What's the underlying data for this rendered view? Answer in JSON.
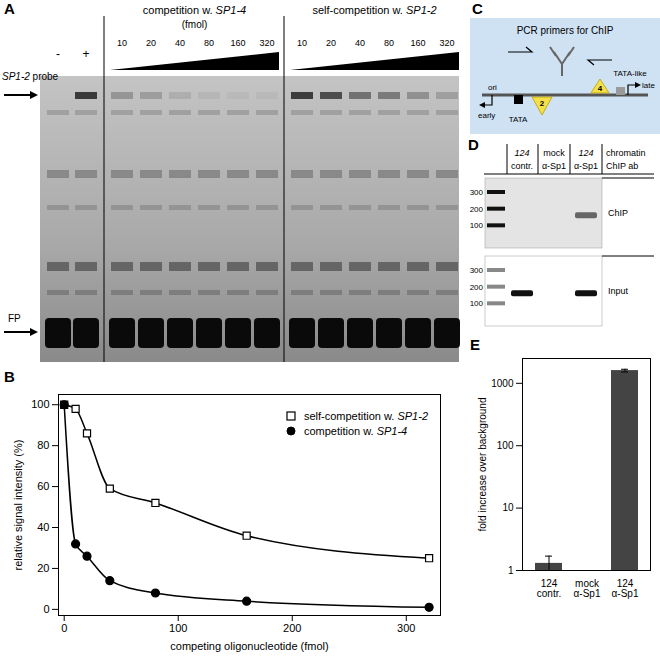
{
  "panels": {
    "A": {
      "letter": "A",
      "probe_label": "SP1-2 probe",
      "free_probe_label": "FP",
      "control_lanes": [
        "-",
        "+"
      ],
      "groups": [
        {
          "title": "competition w. SP1-4",
          "unit": "(fmol)",
          "lanes": [
            10,
            20,
            40,
            80,
            160,
            320
          ]
        },
        {
          "title": "self-competition w. SP1-2",
          "lanes": [
            10,
            20,
            40,
            80,
            160,
            320
          ]
        }
      ]
    },
    "B": {
      "letter": "B"
    },
    "C": {
      "letter": "C",
      "title": "PCR primers for ChIP",
      "labels": {
        "ori": "ori",
        "early": "early",
        "late": "late",
        "tata": "TATA",
        "tata_like": "TATA-like",
        "site_2": "2",
        "site_4": "4"
      }
    },
    "D": {
      "letter": "D",
      "header": [
        "chromatin",
        "ChIP ab"
      ],
      "columns": [
        {
          "chromatin": "124",
          "antibody": "contr."
        },
        {
          "chromatin": "mock",
          "antibody": "α-Sp1"
        },
        {
          "chromatin": "124",
          "antibody": "α-Sp1"
        }
      ],
      "ladder": [
        300,
        200,
        100
      ],
      "rows": [
        {
          "label": "ChIP",
          "bands": [
            false,
            false,
            true
          ]
        },
        {
          "label": "Input",
          "bands": [
            true,
            false,
            true
          ]
        }
      ]
    },
    "E": {
      "letter": "E"
    }
  },
  "chart_data": [
    {
      "type": "scatter",
      "xlabel": "competing oligonucleotide (fmol)",
      "ylabel": "relative signal intensity (%)",
      "x": [
        0,
        10,
        20,
        40,
        80,
        160,
        320
      ],
      "xlim": [
        -5,
        330
      ],
      "xticks": [
        0,
        100,
        200,
        300
      ],
      "ylim": [
        -3,
        105
      ],
      "yticks": [
        0,
        20,
        40,
        60,
        80,
        100
      ],
      "legend": "top-right",
      "series": [
        {
          "name": "self-competition w. SP1-2",
          "color": "#000000",
          "marker": "open-square",
          "line_style": "solid",
          "values": [
            100,
            98,
            86,
            59,
            52,
            36,
            25
          ]
        },
        {
          "name": "competition w. SP1-4",
          "color": "#000000",
          "marker": "circle",
          "line_style": "solid",
          "values": [
            100,
            32,
            26,
            14,
            8,
            4,
            1
          ]
        }
      ]
    },
    {
      "type": "bar",
      "categories": [
        "124\ncontr.",
        "mock\nα-Sp1",
        "124\nα-Sp1"
      ],
      "values": [
        1.3,
        null,
        1600
      ],
      "errors": [
        0.4,
        null,
        80
      ],
      "ylabel": "fold increase over background",
      "log": "y",
      "ylim": [
        1,
        2500
      ],
      "yticks": [
        1,
        10,
        100,
        1000
      ],
      "color": "#444444"
    }
  ]
}
